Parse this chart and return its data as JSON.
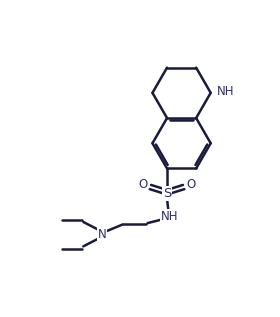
{
  "background_color": "#ffffff",
  "line_color": "#1a1a3e",
  "line_width": 1.8,
  "text_color": "#2d2d6e",
  "font_size": 8.5,
  "figsize": [
    2.8,
    3.17
  ],
  "dpi": 100,
  "xlim": [
    0,
    10
  ],
  "ylim": [
    0,
    11.3
  ]
}
